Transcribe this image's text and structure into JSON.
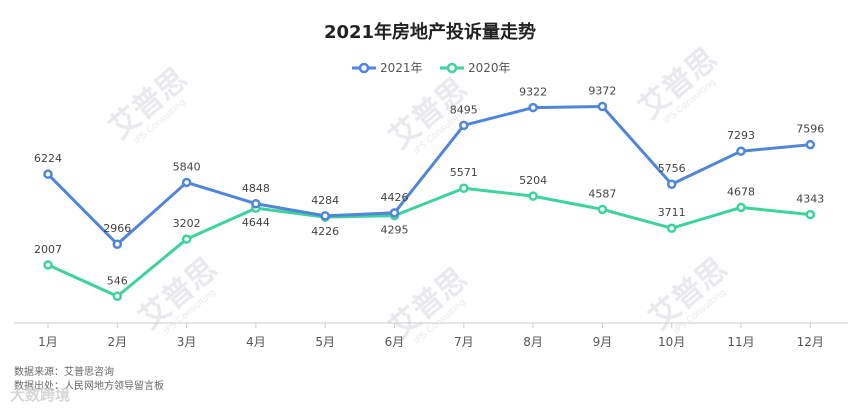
{
  "chart_data": {
    "type": "line",
    "title": "2021年房地产投诉量走势",
    "categories": [
      "1月",
      "2月",
      "3月",
      "4月",
      "5月",
      "6月",
      "7月",
      "8月",
      "9月",
      "10月",
      "11月",
      "12月"
    ],
    "series": [
      {
        "name": "2021年",
        "color": "#4f86d9",
        "values": [
          6224,
          2966,
          5840,
          4848,
          4284,
          4426,
          8495,
          9322,
          9372,
          5756,
          7293,
          7596
        ]
      },
      {
        "name": "2020年",
        "color": "#3dd39b",
        "values": [
          2007,
          546,
          3202,
          4644,
          4226,
          4295,
          5571,
          5204,
          4587,
          3711,
          4678,
          4343
        ]
      }
    ],
    "legend_position": "top-center",
    "grid": false
  },
  "source": {
    "line1": "数据来源：艾普思咨询",
    "line2": "数据出处：人民网地方领导留言板"
  },
  "watermark": {
    "brand": "艾普思",
    "sub": "IPS Consulting",
    "footer": "大数跨境"
  }
}
